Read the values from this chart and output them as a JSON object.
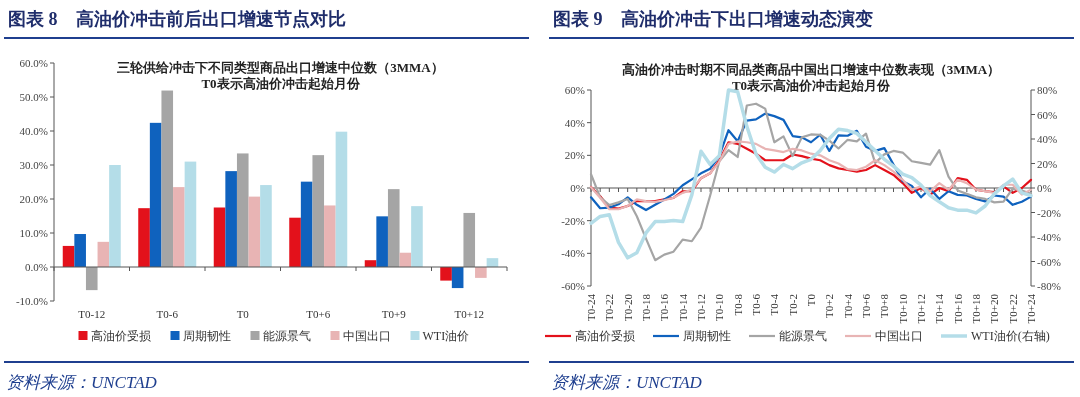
{
  "chart_data": [
    {
      "type": "bar",
      "title": "图表 8　高油价冲击前后出口增速节点对比",
      "subtitle": "三轮供给冲击下不同类型商品出口增速中位数（3MMA）\nT0表示高油价冲击起始月份",
      "categories": [
        "T0-12",
        "T0-6",
        "T0",
        "T0+6",
        "T0+9",
        "T0+12"
      ],
      "series": [
        {
          "name": "高油价受损",
          "color": "#e3111b",
          "values": [
            6.2,
            17.3,
            17.5,
            14.5,
            2.0,
            -4.0
          ]
        },
        {
          "name": "周期韧性",
          "color": "#0f62be",
          "values": [
            9.7,
            42.4,
            28.2,
            25.1,
            14.9,
            -6.2
          ]
        },
        {
          "name": "能源景气",
          "color": "#a5a5a5",
          "values": [
            -6.8,
            51.9,
            33.4,
            32.9,
            22.9,
            15.9
          ]
        },
        {
          "name": "中国出口",
          "color": "#e8b4b4",
          "values": [
            7.4,
            23.5,
            20.7,
            18.1,
            4.2,
            -3.2
          ]
        },
        {
          "name": "WTI油价",
          "color": "#b4dde8",
          "values": [
            30.0,
            31.0,
            24.1,
            39.8,
            17.9,
            2.6
          ]
        }
      ],
      "ylim": [
        -10,
        60
      ],
      "yticks": [
        {
          "value": -10,
          "label": "-10.0%"
        },
        {
          "value": 0,
          "label": "0.0%"
        },
        {
          "value": 10,
          "label": "10.0%"
        },
        {
          "value": 20,
          "label": "20.0%"
        },
        {
          "value": 30,
          "label": "30.0%"
        },
        {
          "value": 40,
          "label": "40.0%"
        },
        {
          "value": 50,
          "label": "50.0%"
        },
        {
          "value": 60,
          "label": "60.0%"
        }
      ],
      "legend": "bottom",
      "annotations": [
        "资料来源：UNCTAD"
      ]
    },
    {
      "type": "line",
      "title": "图表 9　高油价冲击下出口增速动态演变",
      "subtitle": "高油价冲击时期不同品类商品中国出口增速中位数表现（3MMA）\nT0表示高油价冲击起始月份",
      "categories": [
        "T0-24",
        null,
        "T0-22",
        null,
        "T0-20",
        null,
        "T0-18",
        null,
        "T0-16",
        null,
        "T0-14",
        null,
        "T0-12",
        null,
        "T0-10",
        null,
        "T0-8",
        null,
        "T0-6",
        null,
        "T0-4",
        null,
        "T0-2",
        null,
        "T0",
        null,
        "T0+2",
        null,
        "T0+4",
        null,
        "T0+6",
        null,
        "T0+8",
        null,
        "T0+10",
        null,
        "T0+12",
        null,
        "T0+14",
        null,
        "T0+16",
        null,
        "T0+18",
        null,
        "T0+20",
        null,
        "T0+22",
        null,
        "T0+24"
      ],
      "series": [
        {
          "name": "高油价受损",
          "color": "#e3111b",
          "values": [
            0.6,
            -5,
            -12,
            -12.6,
            -11,
            -8,
            -8,
            -8,
            -7,
            -6,
            -2,
            -2,
            6,
            9,
            17,
            28,
            27,
            24,
            21,
            17,
            17,
            17,
            20.5,
            19.5,
            18,
            17,
            14,
            12,
            11,
            10,
            11,
            14,
            11,
            8,
            3,
            -3,
            0,
            -4,
            0,
            -2,
            6,
            5,
            -1,
            -2,
            -2.5,
            1,
            -3,
            0,
            5
          ]
        },
        {
          "name": "周期韧性",
          "color": "#0f62be",
          "values": [
            -5.7,
            -12.4,
            -12,
            -10,
            -5.7,
            -10.3,
            -13.5,
            -10.3,
            -7,
            -3.6,
            1.7,
            5.3,
            9,
            11.8,
            19.6,
            35.4,
            28.6,
            41.3,
            42,
            45.5,
            44,
            41.7,
            31.8,
            31,
            28,
            32.6,
            22.7,
            32.2,
            32,
            35,
            25.3,
            22.7,
            24.4,
            14.3,
            4.2,
            1.3,
            -5.7,
            -0.4,
            -6.7,
            -2,
            -4.2,
            -4.6,
            -6.7,
            -8.2,
            -4.6,
            -5.3,
            -10.3,
            -8.4,
            -5.3
          ]
        },
        {
          "name": "能源景气",
          "color": "#a5a5a5",
          "values": [
            8.4,
            -5.7,
            -10.5,
            -8.8,
            -6.7,
            -17.3,
            -31,
            -44.2,
            -40.8,
            -39,
            -31.6,
            -32.6,
            -24.2,
            -4.6,
            16.4,
            23.2,
            19,
            50.5,
            51.6,
            48.6,
            28,
            31.6,
            19.6,
            31,
            32.8,
            32.6,
            29,
            24.2,
            29.5,
            28.6,
            33.3,
            15.4,
            20.6,
            22.7,
            21.7,
            16.4,
            15.4,
            14.3,
            23.2,
            6.9,
            -1.5,
            -3.6,
            -5.7,
            -6.7,
            -8.8,
            -8.4,
            -0.4,
            -1.5,
            -3.6
          ]
        },
        {
          "name": "中国出口",
          "color": "#e8b4b4",
          "values": [
            0.5,
            -6,
            -13,
            -13,
            -11,
            -7,
            -8,
            -8.5,
            -7.5,
            -6,
            -3,
            -1,
            6,
            9,
            16,
            27,
            28.5,
            28,
            27,
            24,
            23,
            22,
            24,
            23,
            21,
            20,
            17,
            15,
            11.5,
            11,
            13,
            17,
            14,
            10,
            5,
            -1,
            1,
            -2,
            3,
            -1,
            5,
            3,
            -1,
            -2,
            -3,
            2,
            2,
            -4,
            -1
          ]
        },
        {
          "name": "WTI油价(右轴)",
          "color": "#b4dde8",
          "axis": "y2",
          "values": [
            -28.8,
            -23.2,
            -21.8,
            -44.4,
            -57,
            -52.8,
            -36.7,
            -27.4,
            -27.4,
            -26.6,
            -27.4,
            -5.6,
            30,
            19.2,
            26.3,
            80,
            78.5,
            50.3,
            27.7,
            17,
            13,
            19.2,
            15.8,
            20.6,
            23.4,
            30.5,
            40.4,
            48,
            46.9,
            44.6,
            37.6,
            30.5,
            23.4,
            17.8,
            11.3,
            8.5,
            2.3,
            -6.2,
            -11.3,
            -16.1,
            -18.1,
            -18.1,
            -20.3,
            -14.7,
            -4.8,
            1.7,
            7.3,
            -4,
            -6.2
          ]
        }
      ],
      "ylim": [
        -60,
        60
      ],
      "yticks": [
        {
          "value": -60,
          "label": "-60%"
        },
        {
          "value": -40,
          "label": "-40%"
        },
        {
          "value": -20,
          "label": "-20%"
        },
        {
          "value": 0,
          "label": "0%"
        },
        {
          "value": 20,
          "label": "20%"
        },
        {
          "value": 40,
          "label": "40%"
        },
        {
          "value": 60,
          "label": "60%"
        }
      ],
      "y2lim": [
        -80,
        80
      ],
      "y2ticks": [
        {
          "value": -80,
          "label": "-80%"
        },
        {
          "value": -60,
          "label": "-60%"
        },
        {
          "value": -40,
          "label": "-40%"
        },
        {
          "value": -20,
          "label": "-20%"
        },
        {
          "value": 0,
          "label": "0%"
        },
        {
          "value": 20,
          "label": "20%"
        },
        {
          "value": 40,
          "label": "40%"
        },
        {
          "value": 60,
          "label": "60%"
        },
        {
          "value": 80,
          "label": "80%"
        }
      ],
      "legend": "bottom",
      "annotations": [
        "资料来源：UNCTAD"
      ]
    }
  ]
}
